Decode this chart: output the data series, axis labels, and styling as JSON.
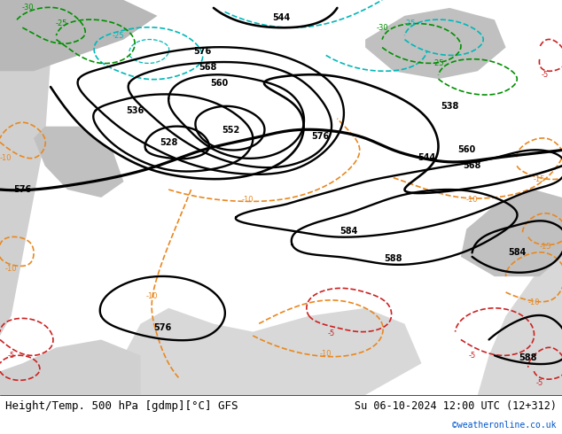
{
  "title_left": "Height/Temp. 500 hPa [gdmp][°C] GFS",
  "title_right": "Su 06-10-2024 12:00 UTC (12+312)",
  "credit": "©weatheronline.co.uk",
  "bg_green": "#c8e4a0",
  "bg_gray_land": "#b8b8b8",
  "bg_sea": "#d0d0d0",
  "bg_white_sea": "#e8e8e8",
  "height_color": "#000000",
  "temp_orange": "#e88820",
  "temp_cyan": "#00b8b8",
  "temp_green": "#009000",
  "temp_red": "#cc2222",
  "font_size_label": 7,
  "font_size_title": 9
}
